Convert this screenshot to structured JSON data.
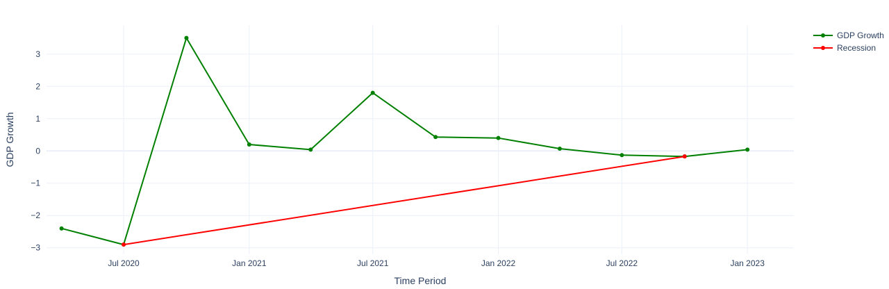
{
  "chart_data": {
    "type": "line",
    "xlabel": "Time Period",
    "ylabel": "GDP Growth",
    "xlim": [
      "2020-03-10",
      "2023-03-10"
    ],
    "ylim": [
      -3.2,
      3.9
    ],
    "grid": true,
    "legend_position": "top-right",
    "x_ticks": [
      {
        "date": "2020-07-01",
        "label": "Jul 2020"
      },
      {
        "date": "2021-01-01",
        "label": "Jan 2021"
      },
      {
        "date": "2021-07-01",
        "label": "Jul 2021"
      },
      {
        "date": "2022-01-01",
        "label": "Jan 2022"
      },
      {
        "date": "2022-07-01",
        "label": "Jul 2022"
      },
      {
        "date": "2023-01-01",
        "label": "Jan 2023"
      }
    ],
    "y_ticks": [
      {
        "value": 3,
        "label": "3"
      },
      {
        "value": 2,
        "label": "2"
      },
      {
        "value": 1,
        "label": "1"
      },
      {
        "value": 0,
        "label": "0"
      },
      {
        "value": -1,
        "label": "−1"
      },
      {
        "value": -2,
        "label": "−2"
      },
      {
        "value": -3,
        "label": "−3"
      }
    ],
    "series": [
      {
        "name": "GDP Growth",
        "color": "#008000",
        "x": [
          "2020-04-01",
          "2020-07-01",
          "2020-10-01",
          "2021-01-01",
          "2021-04-01",
          "2021-07-01",
          "2021-10-01",
          "2022-01-01",
          "2022-04-01",
          "2022-07-01",
          "2022-10-01",
          "2023-01-01"
        ],
        "y": [
          -2.4,
          -2.9,
          3.5,
          0.2,
          0.04,
          1.8,
          0.43,
          0.4,
          0.07,
          -0.13,
          -0.17,
          0.04
        ]
      },
      {
        "name": "Recession",
        "color": "#ff0000",
        "x": [
          "2020-07-01",
          "2022-10-01"
        ],
        "y": [
          -2.9,
          -0.17
        ]
      }
    ]
  }
}
